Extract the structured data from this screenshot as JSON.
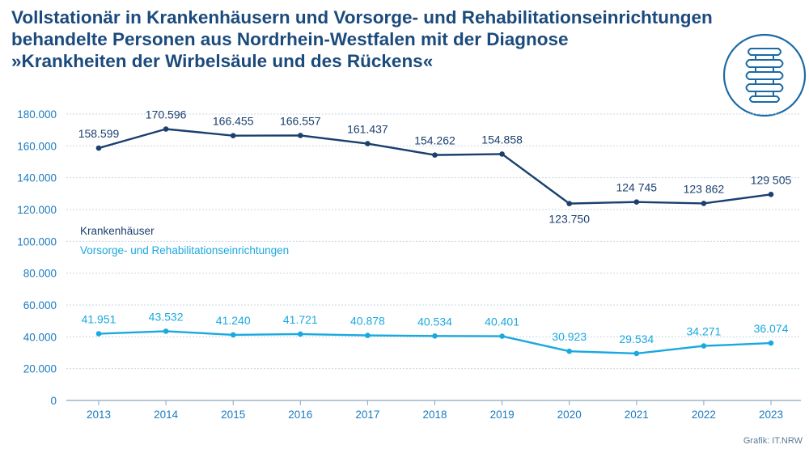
{
  "title_lines": [
    "Vollstationär in Krankenhäusern und Vorsorge- und Rehabilitationseinrichtungen",
    "behandelte Personen aus Nordrhein-Westfalen mit der Diagnose",
    "»Krankheiten der Wirbelsäule und des Rückens«"
  ],
  "source": "Grafik: IT.NRW",
  "logo_icon": "spine-icon",
  "colors": {
    "title": "#1b4a7c",
    "krankenhaeuser": "#1b3f6e",
    "vorsorge": "#1aa8e0",
    "grid": "#c7d7e5",
    "axis_text": "#1b7bbf"
  },
  "chart_data": {
    "type": "line",
    "categories": [
      "2013",
      "2014",
      "2015",
      "2016",
      "2017",
      "2018",
      "2019",
      "2020",
      "2021",
      "2022",
      "2023"
    ],
    "y_ticks": [
      "0",
      "20.000",
      "40.000",
      "60.000",
      "80.000",
      "100.000",
      "120.000",
      "140.000",
      "160.000",
      "180.000"
    ],
    "ylim": [
      0,
      180000
    ],
    "grid": true,
    "legend_position": "left-middle",
    "series": [
      {
        "name": "Krankenhäuser",
        "color": "#1b3f6e",
        "values": [
          158599,
          170596,
          166455,
          166557,
          161437,
          154262,
          154858,
          123750,
          124745,
          123862,
          129505
        ],
        "labels": [
          "158.599",
          "170.596",
          "166.455",
          "166.557",
          "161.437",
          "154.262",
          "154.858",
          "123.750",
          "124 745",
          "123 862",
          "129 505"
        ],
        "label_placement": [
          "above",
          "above",
          "above",
          "above",
          "above",
          "above",
          "above",
          "below",
          "above",
          "above",
          "above"
        ]
      },
      {
        "name": "Vorsorge- und Rehabilitationseinrichtungen",
        "color": "#1aa8e0",
        "values": [
          41951,
          43532,
          41240,
          41721,
          40878,
          40534,
          40401,
          30923,
          29534,
          34271,
          36074
        ],
        "labels": [
          "41.951",
          "43.532",
          "41.240",
          "41.721",
          "40.878",
          "40.534",
          "40.401",
          "30.923",
          "29.534",
          "34.271",
          "36.074"
        ],
        "label_placement": [
          "above",
          "above",
          "above",
          "above",
          "above",
          "above",
          "above",
          "above",
          "above",
          "above",
          "above"
        ]
      }
    ]
  }
}
